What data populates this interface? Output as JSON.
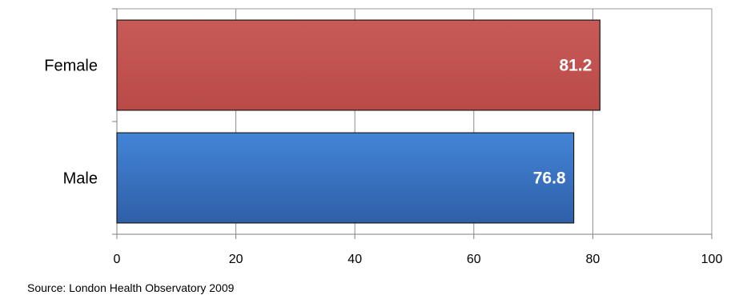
{
  "chart_data": {
    "type": "bar",
    "orientation": "horizontal",
    "categories": [
      "Female",
      "Male"
    ],
    "values": [
      81.2,
      76.8
    ],
    "value_labels": [
      "81.2",
      "76.8"
    ],
    "colors": [
      "#c0504d",
      "#3a78c9"
    ],
    "xlim": [
      0,
      100
    ],
    "xticks": [
      0,
      20,
      40,
      60,
      80,
      100
    ],
    "xtick_labels": [
      "0",
      "20",
      "40",
      "60",
      "80",
      "100"
    ],
    "grid": "vertical",
    "title": "",
    "xlabel": "",
    "ylabel": ""
  },
  "source": "Source: London Health Observatory 2009"
}
